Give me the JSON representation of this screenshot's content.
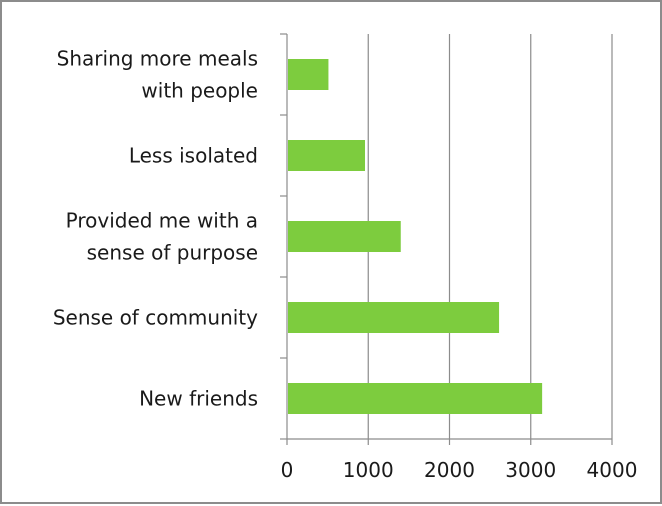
{
  "chart_data": {
    "type": "bar",
    "orientation": "horizontal",
    "categories": [
      [
        "Sharing more meals",
        "with people"
      ],
      [
        "Less isolated"
      ],
      [
        "Provided me with a",
        "sense of purpose"
      ],
      [
        "Sense of community"
      ],
      [
        "New friends"
      ]
    ],
    "values": [
      510,
      960,
      1400,
      2610,
      3140
    ],
    "xlim": [
      0,
      4000
    ],
    "xticks": [
      0,
      1000,
      2000,
      3000,
      4000
    ],
    "grid": "vertical",
    "legend": "none",
    "bar_color": "#7dcc3e",
    "grid_color": "#8c8c8c",
    "axis_color": "#8c8c8c"
  }
}
